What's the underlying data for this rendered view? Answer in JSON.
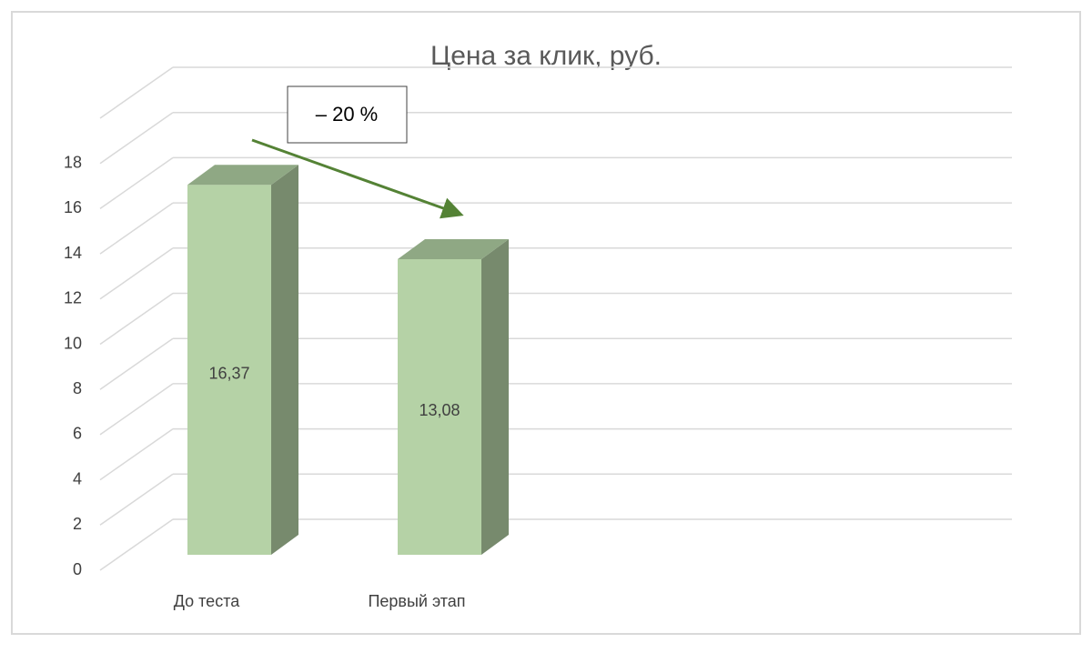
{
  "chart_data": {
    "type": "bar3d",
    "title": "Цена за клик, руб.",
    "categories": [
      "До теста",
      "Первый этап"
    ],
    "values": [
      16.37,
      13.08
    ],
    "value_labels": [
      "16,37",
      "13,08"
    ],
    "color": "#b5d2a6",
    "ylim": [
      0,
      20
    ],
    "yticks": [
      0,
      2,
      4,
      6,
      8,
      10,
      12,
      14,
      16,
      18
    ],
    "grid": true,
    "annotation": "– 20 %"
  }
}
